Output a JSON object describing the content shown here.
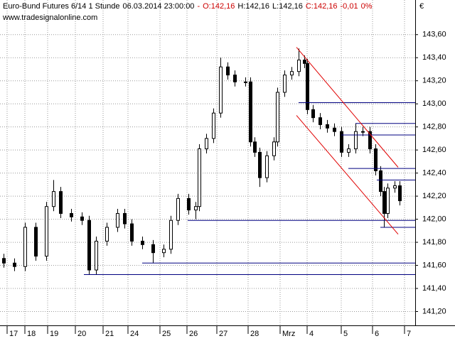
{
  "chart_data": {
    "type": "candlestick",
    "header": [
      {
        "text": "Euro-Bund Futures 6/14 1 Stunde",
        "color": "#000000"
      },
      {
        "text": "06.03.2014 23:00:00",
        "color": "#000000"
      },
      {
        "text": "-",
        "color": "#cc0000"
      },
      {
        "text": "O:142,16",
        "color": "#cc0000"
      },
      {
        "text": "H:142,16",
        "color": "#000000"
      },
      {
        "text": "L:142,16",
        "color": "#000000"
      },
      {
        "text": "C:142,16",
        "color": "#cc0000"
      },
      {
        "text": "-0,01",
        "color": "#cc0000"
      },
      {
        "text": "0%",
        "color": "#cc0000"
      }
    ],
    "watermark": "www.tradesignalonline.com",
    "currency": "€",
    "xlim": [
      0,
      146
    ],
    "ylim": [
      141.08,
      143.9
    ],
    "xticks": [
      {
        "value": 2.5,
        "label": "17"
      },
      {
        "value": 8.75,
        "label": "18"
      },
      {
        "value": 16.75,
        "label": "19"
      },
      {
        "value": 26.5,
        "label": "20"
      },
      {
        "value": 36.25,
        "label": "21"
      },
      {
        "value": 45,
        "label": "24"
      },
      {
        "value": 56.25,
        "label": "25"
      },
      {
        "value": 65.75,
        "label": "26"
      },
      {
        "value": 76.25,
        "label": "27"
      },
      {
        "value": 87.25,
        "label": "28"
      },
      {
        "value": 98.5,
        "label": "Mrz"
      },
      {
        "value": 108,
        "label": "4"
      },
      {
        "value": 120,
        "label": "5"
      },
      {
        "value": 131,
        "label": "6"
      },
      {
        "value": 142.25,
        "label": "7"
      }
    ],
    "yticks": [
      {
        "value": 141.2,
        "label": "141,20"
      },
      {
        "value": 141.4,
        "label": "141,40"
      },
      {
        "value": 141.6,
        "label": "141,60"
      },
      {
        "value": 141.8,
        "label": "141,80"
      },
      {
        "value": 142.0,
        "label": "142,00"
      },
      {
        "value": 142.2,
        "label": "142,20"
      },
      {
        "value": 142.4,
        "label": "142,40"
      },
      {
        "value": 142.6,
        "label": "142,60"
      },
      {
        "value": 142.8,
        "label": "142,80"
      },
      {
        "value": 143.0,
        "label": "143,00"
      },
      {
        "value": 143.2,
        "label": "143,20"
      },
      {
        "value": 143.4,
        "label": "143,40"
      },
      {
        "value": 143.6,
        "label": "143,60"
      }
    ],
    "grid": true,
    "up_color": "#ffffff",
    "down_color": "#000000",
    "x": [
      1.25,
      5,
      8.75,
      12.5,
      16.25,
      18.75,
      21.25,
      25,
      28.75,
      31.25,
      33.75,
      37.5,
      41.25,
      43.75,
      46.25,
      50,
      53.75,
      57.5,
      60,
      62.5,
      66.25,
      68.75,
      70,
      72.5,
      75,
      77.5,
      80,
      82.5,
      86.25,
      88,
      89.5,
      91.25,
      93.75,
      96.25,
      97.5,
      100,
      102.5,
      105,
      107,
      108,
      110,
      112.5,
      115,
      117.5,
      120,
      122.5,
      125,
      127.5,
      130,
      132,
      133.75,
      135,
      136.25,
      138.75,
      140.5
    ],
    "open": [
      141.66,
      141.62,
      141.59,
      141.93,
      141.68,
      142.11,
      142.24,
      142.05,
      142.02,
      141.99,
      141.56,
      141.81,
      141.93,
      142.05,
      141.96,
      141.81,
      141.78,
      141.71,
      141.74,
      141.99,
      142.18,
      142.08,
      142.11,
      142.61,
      142.7,
      142.92,
      143.32,
      143.25,
      143.19,
      143.19,
      142.67,
      142.58,
      142.36,
      142.55,
      142.67,
      143.1,
      143.25,
      143.28,
      143.38,
      143.35,
      142.95,
      142.88,
      142.82,
      142.79,
      142.76,
      142.58,
      142.61,
      142.76,
      142.76,
      142.61,
      142.42,
      142.24,
      142.05,
      142.27,
      142.29
    ],
    "high": [
      141.7,
      141.66,
      141.97,
      141.97,
      142.15,
      142.34,
      142.28,
      142.09,
      142.06,
      142.03,
      141.85,
      141.97,
      142.09,
      142.09,
      142.0,
      141.85,
      141.82,
      141.78,
      142.03,
      142.22,
      142.22,
      142.15,
      142.65,
      142.74,
      142.96,
      143.4,
      143.36,
      143.29,
      143.23,
      143.23,
      142.71,
      142.62,
      142.59,
      142.71,
      143.14,
      143.29,
      143.32,
      143.48,
      143.42,
      143.39,
      142.99,
      142.92,
      142.86,
      142.83,
      142.8,
      142.65,
      142.83,
      142.8,
      142.8,
      142.65,
      142.46,
      142.28,
      142.31,
      142.33,
      142.33
    ],
    "low": [
      141.58,
      141.55,
      141.55,
      141.64,
      141.64,
      142.07,
      142.01,
      141.98,
      141.95,
      141.52,
      141.52,
      141.77,
      141.89,
      141.92,
      141.77,
      141.74,
      141.62,
      141.67,
      141.7,
      141.95,
      142.04,
      142.0,
      142.07,
      142.57,
      142.66,
      142.88,
      143.21,
      143.15,
      143.15,
      142.63,
      142.54,
      142.28,
      142.32,
      142.51,
      142.63,
      143.06,
      143.21,
      143.24,
      143.31,
      142.91,
      142.84,
      142.78,
      142.75,
      142.72,
      142.54,
      142.54,
      142.57,
      142.72,
      142.57,
      142.38,
      142.2,
      141.93,
      142.01,
      142.23,
      142.12
    ],
    "close": [
      141.62,
      141.59,
      141.93,
      141.68,
      142.11,
      142.24,
      142.05,
      142.02,
      141.99,
      141.56,
      141.81,
      141.93,
      142.05,
      141.96,
      141.81,
      141.78,
      141.71,
      141.74,
      141.99,
      142.18,
      142.08,
      142.11,
      142.61,
      142.7,
      142.92,
      143.32,
      143.25,
      143.19,
      143.19,
      142.67,
      142.58,
      142.36,
      142.55,
      142.67,
      143.1,
      143.25,
      143.28,
      143.38,
      143.35,
      142.95,
      142.88,
      142.82,
      142.79,
      142.76,
      142.58,
      142.61,
      142.76,
      142.76,
      142.61,
      142.42,
      142.24,
      142.05,
      142.27,
      142.29,
      142.16
    ],
    "lines": [
      {
        "x": [
          105,
          146
        ],
        "y": [
          143.01,
          143.01
        ],
        "color": "#000080"
      },
      {
        "x": [
          125,
          146
        ],
        "y": [
          142.83,
          142.83
        ],
        "color": "#000080"
      },
      {
        "x": [
          120,
          146
        ],
        "y": [
          142.73,
          142.73
        ],
        "color": "#000080"
      },
      {
        "x": [
          122.5,
          146
        ],
        "y": [
          142.44,
          142.44
        ],
        "color": "#000080"
      },
      {
        "x": [
          132.5,
          146
        ],
        "y": [
          142.34,
          142.34
        ],
        "color": "#000080"
      },
      {
        "x": [
          66,
          146
        ],
        "y": [
          141.99,
          141.99
        ],
        "color": "#000080"
      },
      {
        "x": [
          133.75,
          146
        ],
        "y": [
          141.93,
          141.93
        ],
        "color": "#000080"
      },
      {
        "x": [
          50,
          146
        ],
        "y": [
          141.62,
          141.62
        ],
        "color": "#000080"
      },
      {
        "x": [
          29.5,
          146
        ],
        "y": [
          141.52,
          141.52
        ],
        "color": "#000080"
      },
      {
        "x": [
          104.25,
          140
        ],
        "y": [
          143.49,
          142.45
        ],
        "color": "#e00000"
      },
      {
        "x": [
          104.25,
          140
        ],
        "y": [
          142.9,
          141.87
        ],
        "color": "#e00000"
      }
    ]
  }
}
